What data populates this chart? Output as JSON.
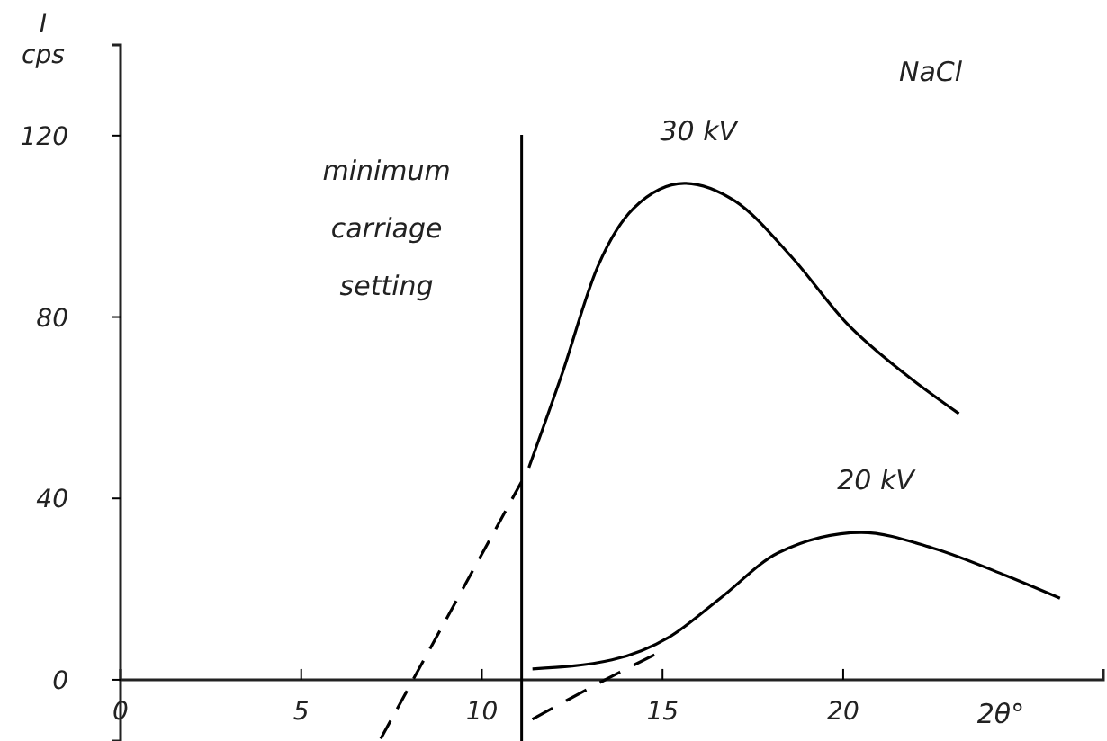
{
  "chart_data": {
    "type": "line",
    "title": "NaCl",
    "xlabel": "2θ°",
    "ylabel": "I cps",
    "xlim": [
      0,
      27.2
    ],
    "ylim": [
      -13.5,
      140
    ],
    "xticks": [
      0,
      5,
      10,
      15,
      20
    ],
    "yticks": [
      0,
      40,
      80,
      120
    ],
    "grid": false,
    "legend": false,
    "marker": "none",
    "series": [
      {
        "name": "30 kV",
        "color": "#000000",
        "line_style": "solid",
        "x": [
          11.3,
          12.2,
          13.2,
          14.2,
          15.6,
          17.0,
          18.6,
          20.1,
          21.7,
          23.2
        ],
        "values": [
          46.8,
          67,
          91,
          104,
          109.5,
          105.6,
          93,
          78.6,
          67.5,
          58.7
        ]
      },
      {
        "color": "#000000",
        "line_style": "dashed",
        "x": [
          7.2,
          11.1
        ],
        "values": [
          -13,
          43.7
        ]
      },
      {
        "name": "20 kV",
        "color": "#000000",
        "line_style": "solid",
        "x": [
          11.4,
          13.6,
          15.2,
          16.6,
          18.2,
          20.5,
          22.5,
          24.5,
          26.0
        ],
        "values": [
          2.4,
          4.4,
          9.5,
          18,
          28,
          32.5,
          29,
          23,
          18
        ]
      },
      {
        "color": "#000000",
        "line_style": "dashed",
        "x": [
          11.4,
          13.8,
          14.8
        ],
        "values": [
          -8.7,
          1.6,
          5.6
        ]
      }
    ],
    "ref_lines": [
      {
        "axis": "x",
        "value": 11.1,
        "label": "minimum carriage setting",
        "color": "#000000"
      }
    ]
  }
}
